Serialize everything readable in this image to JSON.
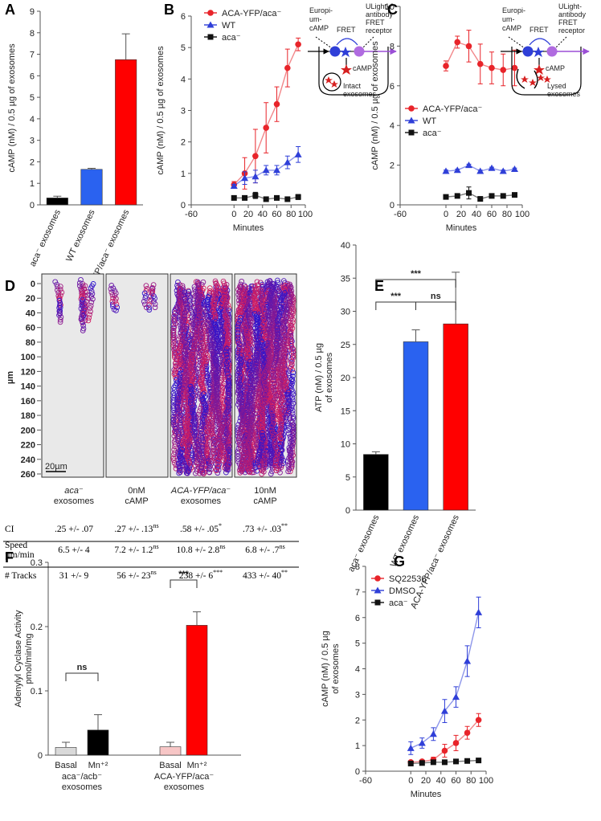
{
  "chart_data": [
    {
      "type": "bar",
      "label": "A",
      "ylabel": [
        "cAMP (nM) / 0.5 µg of exosomes"
      ],
      "categories": [
        "aca⁻ exosomes",
        "WT exosomes",
        "ACA-YFP/aca⁻ exosomes"
      ],
      "values": [
        0.32,
        1.65,
        6.75
      ],
      "errors": [
        0.08,
        0.05,
        1.2
      ],
      "colors": [
        "#000000",
        "#2a62f0",
        "#ff0000"
      ],
      "ylim": [
        0,
        9
      ],
      "yticks": [
        0,
        1,
        2,
        3,
        4,
        5,
        6,
        7,
        8,
        9
      ]
    },
    {
      "type": "line",
      "label": "B",
      "ylabel": [
        "cAMP (nM) / 0.5 µg of exosomes"
      ],
      "xlabel": "Minutes",
      "x": [
        0,
        15,
        30,
        45,
        60,
        75,
        90
      ],
      "xlim": [
        -60,
        100
      ],
      "xticks": [
        -60,
        0,
        20,
        40,
        60,
        80,
        100
      ],
      "ylim": [
        0,
        6
      ],
      "yticks": [
        0,
        1,
        2,
        3,
        4,
        5,
        6
      ],
      "series": [
        {
          "name": "ACA-YFP/aca⁻",
          "color": "#e8242a",
          "marker": "circle",
          "values": [
            0.64,
            1.0,
            1.55,
            2.45,
            3.2,
            4.35,
            5.1
          ],
          "errors": [
            0.1,
            0.5,
            0.85,
            0.8,
            0.55,
            0.6,
            0.2
          ]
        },
        {
          "name": "WT",
          "color": "#2f3fd8",
          "marker": "triangle",
          "values": [
            0.6,
            0.85,
            0.9,
            1.1,
            1.1,
            1.35,
            1.6
          ],
          "errors": [
            0.05,
            0.2,
            0.2,
            0.15,
            0.15,
            0.2,
            0.25
          ]
        },
        {
          "name": "aca⁻",
          "color": "#111111",
          "marker": "square",
          "values": [
            0.22,
            0.22,
            0.3,
            0.18,
            0.22,
            0.18,
            0.25
          ],
          "errors": [
            0.03,
            0.03,
            0.1,
            0.03,
            0.03,
            0.05,
            0.08
          ]
        }
      ],
      "diagram": {
        "europium": [
          "Europi-",
          "um-",
          "cAMP"
        ],
        "ulight": [
          "ULight-",
          "antibody",
          "FRET",
          "receptor"
        ],
        "fret": "FRET",
        "camp": "cAMP",
        "exosomes": [
          "Intact",
          "exosomes"
        ]
      }
    },
    {
      "type": "line",
      "label": "C",
      "ylabel": [
        "cAMP (nM) / 0.5 µg of exosomes"
      ],
      "xlabel": "Minutes",
      "x": [
        0,
        15,
        30,
        45,
        60,
        75,
        90
      ],
      "xlim": [
        -60,
        100
      ],
      "xticks": [
        -60,
        0,
        20,
        40,
        60,
        80,
        100
      ],
      "ylim": [
        0,
        10
      ],
      "yticks": [
        0,
        2,
        4,
        6,
        8,
        10
      ],
      "series": [
        {
          "name": "ACA-YFP/aca⁻",
          "color": "#e8242a",
          "marker": "circle",
          "values": [
            7.0,
            8.2,
            8.0,
            7.1,
            6.9,
            6.8,
            6.9
          ],
          "errors": [
            0.25,
            0.3,
            0.8,
            1.0,
            0.8,
            0.8,
            0.9
          ]
        },
        {
          "name": "WT",
          "color": "#2f3fd8",
          "marker": "triangle",
          "values": [
            1.7,
            1.75,
            2.0,
            1.7,
            1.85,
            1.7,
            1.8
          ],
          "errors": [
            0.05,
            0.05,
            0.05,
            0.05,
            0.05,
            0.05,
            0.05
          ]
        },
        {
          "name": "aca⁻",
          "color": "#111111",
          "marker": "square",
          "values": [
            0.4,
            0.45,
            0.6,
            0.3,
            0.45,
            0.45,
            0.5
          ],
          "errors": [
            0.05,
            0.05,
            0.3,
            0.05,
            0.05,
            0.05,
            0.05
          ]
        }
      ],
      "diagram": {
        "europium": [
          "Europi-",
          "um-",
          "cAMP"
        ],
        "ulight": [
          "ULight-",
          "antibody",
          "FRET",
          "receptor"
        ],
        "fret": "FRET",
        "camp": "cAMP",
        "exosomes": [
          "Lysed",
          "exosomes"
        ]
      }
    },
    {
      "type": "bar",
      "label": "E",
      "ylabel": [
        "ATP (nM) / 0.5 µg",
        "of exosomes"
      ],
      "categories": [
        "aca⁻ exosomes",
        "WT exosomes",
        "ACA-YFP/aca⁻ exosomes"
      ],
      "values": [
        8.4,
        25.4,
        28.1
      ],
      "errors": [
        0.4,
        1.8,
        7.8
      ],
      "colors": [
        "#000000",
        "#2a62f0",
        "#ff0000"
      ],
      "ylim": [
        0,
        40
      ],
      "yticks": [
        0,
        5,
        10,
        15,
        20,
        25,
        30,
        35,
        40
      ],
      "annotations": [
        "***",
        "***",
        "ns"
      ]
    },
    {
      "type": "bar",
      "label": "F",
      "ylabel": [
        "Adenylyl Cyclase Activity",
        "pmol/min/mg"
      ],
      "categories": [
        "Basal",
        "Mn⁺²",
        "Basal",
        "Mn⁺²"
      ],
      "groups": [
        [
          "aca⁻/acb⁻",
          "exosomes"
        ],
        [
          "ACA-YFP/aca⁻",
          "exosomes"
        ]
      ],
      "values": [
        0.012,
        0.039,
        0.013,
        0.202
      ],
      "errors": [
        0.008,
        0.024,
        0.007,
        0.021
      ],
      "colors": [
        "#d9d9d9",
        "#000000",
        "#f7c6c6",
        "#ff0000"
      ],
      "ylim": [
        0,
        0.3
      ],
      "yticks": [
        0,
        0.1,
        0.2,
        0.3
      ],
      "annotations": [
        "ns",
        "***"
      ]
    },
    {
      "type": "line",
      "label": "G",
      "ylabel": [
        "cAMP (nM) / 0.5 µg",
        "of exosomes"
      ],
      "xlabel": "Minutes",
      "x": [
        0,
        15,
        30,
        45,
        60,
        75,
        90
      ],
      "xlim": [
        -60,
        100
      ],
      "xticks": [
        -60,
        0,
        20,
        40,
        60,
        80,
        100
      ],
      "ylim": [
        0,
        8
      ],
      "yticks": [
        0,
        1,
        2,
        3,
        4,
        5,
        6,
        7,
        8
      ],
      "series": [
        {
          "name": "SQ22536",
          "color": "#e8242a",
          "marker": "circle",
          "values": [
            0.35,
            0.38,
            0.45,
            0.8,
            1.1,
            1.5,
            2.0
          ],
          "errors": [
            0.05,
            0.05,
            0.1,
            0.25,
            0.3,
            0.25,
            0.25
          ]
        },
        {
          "name": "DMSO",
          "color": "#2f3fd8",
          "marker": "triangle",
          "values": [
            0.9,
            1.1,
            1.45,
            2.35,
            2.9,
            4.3,
            6.2
          ],
          "errors": [
            0.25,
            0.2,
            0.25,
            0.45,
            0.4,
            0.6,
            0.6
          ]
        },
        {
          "name": "aca⁻",
          "color": "#111111",
          "marker": "square",
          "values": [
            0.3,
            0.32,
            0.35,
            0.35,
            0.38,
            0.4,
            0.42
          ],
          "errors": [
            0.02,
            0.02,
            0.02,
            0.02,
            0.02,
            0.02,
            0.02
          ]
        }
      ]
    }
  ],
  "panel_d": {
    "label": "D",
    "ylabel": "µm",
    "ylim": [
      0,
      260
    ],
    "yticks": [
      0,
      20,
      40,
      60,
      80,
      100,
      120,
      140,
      160,
      180,
      200,
      220,
      240,
      260
    ],
    "scale_bar": "20µm",
    "columns": [
      [
        "aca⁻",
        "exosomes"
      ],
      [
        "0nM",
        "cAMP"
      ],
      [
        "ACA-YFP/aca⁻",
        "exosomes"
      ],
      [
        "10nM",
        "cAMP"
      ]
    ],
    "rows": [
      {
        "label": [
          "CI"
        ],
        "cells": [
          {
            "text": ".25 +/- .07"
          },
          {
            "text": ".27 +/- .13",
            "sig": "ns"
          },
          {
            "text": ".58 +/- .05",
            "sig": "*"
          },
          {
            "text": ".73 +/- .03",
            "sig": "**"
          }
        ]
      },
      {
        "label": [
          "Speed",
          "µm/min"
        ],
        "cells": [
          {
            "text": "6.5 +/- 4"
          },
          {
            "text": "7.2 +/- 1.2",
            "sig": "ns"
          },
          {
            "text": "10.8 +/- 2.8",
            "sig": "ns"
          },
          {
            "text": "6.8 +/- .7",
            "sig": "ns"
          }
        ]
      },
      {
        "label": [
          "# Tracks"
        ],
        "cells": [
          {
            "text": "31 +/- 9"
          },
          {
            "text": "56 +/- 23",
            "sig": "ns"
          },
          {
            "text": "238 +/- 6",
            "sig": "***"
          },
          {
            "text": "433 +/- 40",
            "sig": "**"
          }
        ]
      }
    ]
  }
}
